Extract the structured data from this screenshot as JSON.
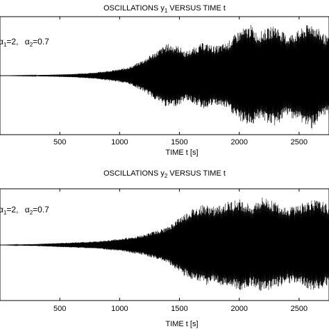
{
  "chart_data": [
    {
      "type": "line",
      "title_main": "OSCILLATIONS y",
      "title_sub": "1",
      "title_rest": " VERSUS TIME t",
      "xlabel": "TIME t  [s]",
      "annotation": {
        "a1_symbol": "α",
        "a1_sub": "1",
        "a1_value": "=2,",
        "a2_symbol": "α",
        "a2_sub": "2",
        "a2_value": "=0.7"
      },
      "xlim": [
        0,
        2750
      ],
      "xticks": [
        "500",
        "1000",
        "1500",
        "2000",
        "2500"
      ],
      "xtick_values": [
        500,
        1000,
        1500,
        2000,
        2500
      ],
      "envelope": {
        "t": [
          0,
          300,
          600,
          800,
          1000,
          1100,
          1200,
          1300,
          1400,
          1500,
          1550,
          1600,
          1700,
          1800,
          1900,
          2000,
          2100,
          2150,
          2200,
          2300,
          2400,
          2500,
          2600,
          2700,
          2750
        ],
        "amplitude": [
          0.0,
          0.01,
          0.03,
          0.06,
          0.12,
          0.18,
          0.3,
          0.45,
          0.6,
          0.55,
          0.45,
          0.5,
          0.62,
          0.55,
          0.62,
          0.85,
          0.95,
          0.8,
          0.85,
          0.95,
          0.75,
          0.85,
          1.0,
          0.8,
          0.7
        ]
      },
      "ylim": [
        -1.1,
        1.1
      ]
    },
    {
      "type": "line",
      "title_main": "OSCILLATIONS y",
      "title_sub": "2",
      "title_rest": " VERSUS TIME t",
      "xlabel": "TIME t  [s]",
      "annotation": {
        "a1_symbol": "α",
        "a1_sub": "1",
        "a1_value": "=2,",
        "a2_symbol": "α",
        "a2_sub": "2",
        "a2_value": "=0.7"
      },
      "xlim": [
        0,
        2750
      ],
      "xticks": [
        "500",
        "1000",
        "1500",
        "2000",
        "2500"
      ],
      "xtick_values": [
        500,
        1000,
        1500,
        2000,
        2500
      ],
      "envelope": {
        "t": [
          0,
          300,
          600,
          800,
          1000,
          1200,
          1300,
          1400,
          1500,
          1600,
          1700,
          1800,
          1900,
          2000,
          2100,
          2200,
          2300,
          2400,
          2500,
          2600,
          2700,
          2750
        ],
        "amplitude": [
          0.0,
          0.02,
          0.05,
          0.07,
          0.12,
          0.2,
          0.28,
          0.35,
          0.55,
          0.7,
          0.8,
          0.75,
          0.85,
          0.9,
          0.8,
          0.95,
          0.85,
          0.75,
          0.8,
          0.9,
          0.85,
          0.8
        ]
      },
      "ylim": [
        -1.1,
        1.1
      ]
    }
  ]
}
